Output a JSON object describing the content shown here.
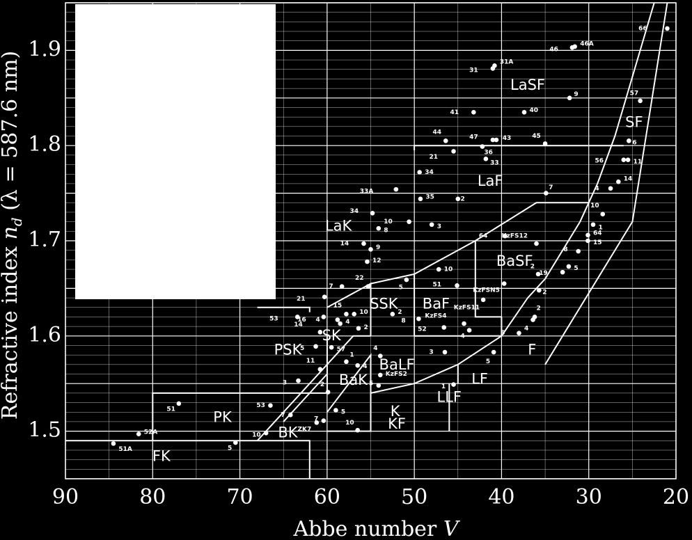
{
  "chart_data": {
    "type": "scatter",
    "xlabel_main": "Abbe number ",
    "xlabel_var": "V",
    "ylabel_main": "Refractive index ",
    "ylabel_var": "n",
    "ylabel_sub": "d",
    "ylabel_paren": "  (λ = 587.6 nm)",
    "xlim": [
      90,
      20
    ],
    "ylim": [
      1.45,
      1.95
    ],
    "x_ticks": [
      90,
      80,
      70,
      60,
      50,
      40,
      30,
      20
    ],
    "x_tick_labels": [
      "90",
      "80",
      "70",
      "60",
      "50",
      "40",
      "30",
      "20"
    ],
    "y_ticks": [
      1.5,
      1.6,
      1.7,
      1.8,
      1.9
    ],
    "y_tick_labels": [
      "1.5",
      "1.6",
      "1.7",
      "1.8",
      "1.9"
    ],
    "grid": true,
    "regions": [
      {
        "label": "FK",
        "x": 79,
        "y": 1.473
      },
      {
        "label": "PK",
        "x": 72,
        "y": 1.514
      },
      {
        "label": "BK",
        "x": 64.5,
        "y": 1.498
      },
      {
        "label": "PSK",
        "x": 64.5,
        "y": 1.585
      },
      {
        "label": "SK",
        "x": 59.5,
        "y": 1.6
      },
      {
        "label": "BaK",
        "x": 57,
        "y": 1.553
      },
      {
        "label": "K",
        "x": 52.2,
        "y": 1.52
      },
      {
        "label": "KF",
        "x": 52,
        "y": 1.507
      },
      {
        "label": "BaLF",
        "x": 52,
        "y": 1.569
      },
      {
        "label": "LLF",
        "x": 46,
        "y": 1.535
      },
      {
        "label": "LF",
        "x": 42.5,
        "y": 1.554
      },
      {
        "label": "F",
        "x": 36.5,
        "y": 1.585
      },
      {
        "label": "BaF",
        "x": 47.5,
        "y": 1.633
      },
      {
        "label": "SSK",
        "x": 53.5,
        "y": 1.633
      },
      {
        "label": "BaSF",
        "x": 38.5,
        "y": 1.678
      },
      {
        "label": "LaK",
        "x": 58.7,
        "y": 1.715
      },
      {
        "label": "LaF",
        "x": 41.3,
        "y": 1.762
      },
      {
        "label": "LaSF",
        "x": 37,
        "y": 1.863
      },
      {
        "label": "SF",
        "x": 24.8,
        "y": 1.824
      }
    ],
    "points": [
      {
        "x": 84.5,
        "y": 1.487,
        "label": "51A",
        "dx": 0.6,
        "dy": -0.006
      },
      {
        "x": 81.6,
        "y": 1.497,
        "label": "52A",
        "dx": 0.6,
        "dy": 0.002
      },
      {
        "x": 77.0,
        "y": 1.529,
        "label": "51",
        "dx": -0.4,
        "dy": -0.006
      },
      {
        "x": 70.5,
        "y": 1.488,
        "label": "5",
        "dx": -0.4,
        "dy": -0.006
      },
      {
        "x": 67.0,
        "y": 1.498,
        "label": "10",
        "dx": -0.6,
        "dy": -0.002
      },
      {
        "x": 66.5,
        "y": 1.527,
        "label": "53",
        "dx": -0.6,
        "dy": 0.0
      },
      {
        "x": 64.2,
        "y": 1.517,
        "label": "7",
        "dx": -0.6,
        "dy": 0.0
      },
      {
        "x": 63.3,
        "y": 1.553,
        "label": "3",
        "dx": -1.3,
        "dy": -0.002
      },
      {
        "x": 63.4,
        "y": 1.62,
        "label": "53",
        "dx": -2.2,
        "dy": -0.002
      },
      {
        "x": 61.3,
        "y": 1.589,
        "label": "5",
        "dx": -1.3,
        "dy": -0.002
      },
      {
        "x": 60.8,
        "y": 1.565,
        "label": "11",
        "dx": -0.6,
        "dy": 0.009
      },
      {
        "x": 60.8,
        "y": 1.604,
        "label": "14",
        "dx": -2.0,
        "dy": 0.008
      },
      {
        "x": 60.4,
        "y": 1.62,
        "label": "16",
        "dx": -2.0,
        "dy": -0.003
      },
      {
        "x": 60.3,
        "y": 1.641,
        "label": "21",
        "dx": -2.2,
        "dy": -0.002
      },
      {
        "x": 59.5,
        "y": 1.588,
        "label": "57",
        "dx": 0.6,
        "dy": -0.002
      },
      {
        "x": 59.0,
        "y": 1.522,
        "label": "5",
        "dx": 0.6,
        "dy": -0.002
      },
      {
        "x": 58.8,
        "y": 1.617,
        "label": "4",
        "dx": -2.0,
        "dy": 0.0
      },
      {
        "x": 58.5,
        "y": 1.613,
        "label": "4",
        "dx": 0.6,
        "dy": 0.002
      },
      {
        "x": 58.3,
        "y": 1.652,
        "label": "7",
        "dx": -1.0,
        "dy": 0.0
      },
      {
        "x": 57.8,
        "y": 1.623,
        "label": "15",
        "dx": -0.5,
        "dy": 0.009
      },
      {
        "x": 56.9,
        "y": 1.623,
        "label": "10",
        "dx": 0.6,
        "dy": 0.002
      },
      {
        "x": 56.4,
        "y": 1.608,
        "label": "2",
        "dx": 0.6,
        "dy": 0.001
      },
      {
        "x": 57.8,
        "y": 1.573,
        "label": "1",
        "dx": 0.4,
        "dy": 0.007
      },
      {
        "x": 56.5,
        "y": 1.569,
        "label": "4",
        "dx": 0.6,
        "dy": -0.001
      },
      {
        "x": 59.9,
        "y": 1.541,
        "label": "2",
        "dx": -0.4,
        "dy": 0.008
      },
      {
        "x": 61.2,
        "y": 1.509,
        "label": "ZK7",
        "dx": -0.6,
        "dy": -0.007
      },
      {
        "x": 60.4,
        "y": 1.511,
        "label": "7",
        "dx": -0.6,
        "dy": 0.002
      },
      {
        "x": 56.5,
        "y": 1.501,
        "label": "10",
        "dx": -0.4,
        "dy": 0.008
      },
      {
        "x": 54.1,
        "y": 1.548,
        "label": "5",
        "dx": -0.6,
        "dy": 0.002
      },
      {
        "x": 53.9,
        "y": 1.559,
        "label": "KzFS2",
        "dx": 0.6,
        "dy": 0.001
      },
      {
        "x": 53.9,
        "y": 1.579,
        "label": "4",
        "dx": -0.3,
        "dy": 0.008
      },
      {
        "x": 55.3,
        "y": 1.652,
        "label": "22",
        "dx": -0.5,
        "dy": 0.009
      },
      {
        "x": 55.4,
        "y": 1.678,
        "label": "12",
        "dx": 0.6,
        "dy": 0.001
      },
      {
        "x": 55.0,
        "y": 1.691,
        "label": "9",
        "dx": 0.6,
        "dy": 0.002
      },
      {
        "x": 55.8,
        "y": 1.697,
        "label": "14",
        "dx": -1.7,
        "dy": 0.0
      },
      {
        "x": 54.8,
        "y": 1.729,
        "label": "34",
        "dx": -1.6,
        "dy": 0.002
      },
      {
        "x": 54.1,
        "y": 1.713,
        "label": "8",
        "dx": 0.6,
        "dy": -0.002
      },
      {
        "x": 52.5,
        "y": 1.623,
        "label": "2",
        "dx": 0.6,
        "dy": 0.002
      },
      {
        "x": 52.1,
        "y": 1.754,
        "label": "33A",
        "dx": -2.6,
        "dy": -0.002
      },
      {
        "x": 50.9,
        "y": 1.659,
        "label": "5",
        "dx": -0.4,
        "dy": -0.008
      },
      {
        "x": 50.6,
        "y": 1.72,
        "label": "10",
        "dx": -1.9,
        "dy": 0.0
      },
      {
        "x": 49.5,
        "y": 1.618,
        "label": "8",
        "dx": -1.5,
        "dy": -0.002
      },
      {
        "x": 49.4,
        "y": 1.772,
        "label": "34",
        "dx": 0.6,
        "dy": 0.0
      },
      {
        "x": 49.3,
        "y": 1.744,
        "label": "35",
        "dx": 0.6,
        "dy": 0.002
      },
      {
        "x": 48.0,
        "y": 1.717,
        "label": "3",
        "dx": 0.6,
        "dy": -0.002
      },
      {
        "x": 47.2,
        "y": 1.67,
        "label": "10",
        "dx": 0.6,
        "dy": 0.0
      },
      {
        "x": 46.5,
        "y": 1.583,
        "label": "3",
        "dx": -1.3,
        "dy": 0.0
      },
      {
        "x": 46.6,
        "y": 1.609,
        "label": "52",
        "dx": -2.0,
        "dy": -0.002
      },
      {
        "x": 46.4,
        "y": 1.805,
        "label": "44",
        "dx": -0.5,
        "dy": 0.009
      },
      {
        "x": 45.5,
        "y": 1.794,
        "label": "21",
        "dx": -1.8,
        "dy": -0.006
      },
      {
        "x": 45.1,
        "y": 1.653,
        "label": "51",
        "dx": -1.8,
        "dy": 0.001
      },
      {
        "x": 45.5,
        "y": 1.549,
        "label": "1",
        "dx": -0.9,
        "dy": -0.002
      },
      {
        "x": 45.0,
        "y": 1.744,
        "label": "2",
        "dx": 0.3,
        "dy": 0.0
      },
      {
        "x": 44.3,
        "y": 1.613,
        "label": "KzFS4",
        "dx": -2.0,
        "dy": 0.008
      },
      {
        "x": 43.7,
        "y": 1.606,
        "label": "4",
        "dx": -0.5,
        "dy": -0.006
      },
      {
        "x": 43.2,
        "y": 1.835,
        "label": "41",
        "dx": -1.7,
        "dy": 0.0
      },
      {
        "x": 42.2,
        "y": 1.799,
        "label": "36",
        "dx": 0.2,
        "dy": -0.006
      },
      {
        "x": 41.8,
        "y": 1.786,
        "label": "33",
        "dx": 0.5,
        "dy": -0.004
      },
      {
        "x": 41.0,
        "y": 1.881,
        "label": "31",
        "dx": -1.7,
        "dy": -0.002
      },
      {
        "x": 40.8,
        "y": 1.884,
        "label": "31A",
        "dx": 0.6,
        "dy": 0.004
      },
      {
        "x": 41.0,
        "y": 1.806,
        "label": "47",
        "dx": -1.7,
        "dy": 0.003
      },
      {
        "x": 40.6,
        "y": 1.806,
        "label": "43",
        "dx": 0.7,
        "dy": 0.002
      },
      {
        "x": 42.1,
        "y": 1.638,
        "label": "KzFS11",
        "dx": -0.4,
        "dy": -0.008
      },
      {
        "x": 40.9,
        "y": 1.583,
        "label": "5",
        "dx": -0.4,
        "dy": -0.01
      },
      {
        "x": 39.6,
        "y": 1.705,
        "label": "64",
        "dx": -2.0,
        "dy": 0.0
      },
      {
        "x": 39.7,
        "y": 1.655,
        "label": "KzFSN5",
        "dx": -0.5,
        "dy": -0.007
      },
      {
        "x": 38.0,
        "y": 1.603,
        "label": "5",
        "dx": -1.6,
        "dy": 0.0
      },
      {
        "x": 36.4,
        "y": 1.617,
        "label": "4",
        "dx": -0.5,
        "dy": -0.009
      },
      {
        "x": 36.2,
        "y": 1.62,
        "label": "2",
        "dx": 0.2,
        "dy": 0.009
      },
      {
        "x": 37.4,
        "y": 1.835,
        "label": "40",
        "dx": 0.6,
        "dy": 0.002
      },
      {
        "x": 36.0,
        "y": 1.697,
        "label": "KzFS12",
        "dx": -1.0,
        "dy": 0.008
      },
      {
        "x": 35.8,
        "y": 1.665,
        "label": "2",
        "dx": -0.4,
        "dy": 0.008
      },
      {
        "x": 35.7,
        "y": 1.648,
        "label": "2",
        "dx": 0.4,
        "dy": -0.002
      },
      {
        "x": 35.0,
        "y": 1.802,
        "label": "45",
        "dx": -0.5,
        "dy": 0.008
      },
      {
        "x": 34.9,
        "y": 1.75,
        "label": "7",
        "dx": 0.3,
        "dy": 0.006
      },
      {
        "x": 33.0,
        "y": 1.667,
        "label": "19",
        "dx": -1.7,
        "dy": -0.001
      },
      {
        "x": 32.3,
        "y": 1.673,
        "label": "5",
        "dx": 0.6,
        "dy": -0.002
      },
      {
        "x": 32.2,
        "y": 1.85,
        "label": "9",
        "dx": 0.5,
        "dy": 0.004
      },
      {
        "x": 31.9,
        "y": 1.903,
        "label": "46",
        "dx": -1.6,
        "dy": -0.002
      },
      {
        "x": 31.6,
        "y": 1.904,
        "label": "46A",
        "dx": 0.6,
        "dy": 0.003
      },
      {
        "x": 31.2,
        "y": 1.689,
        "label": "8",
        "dx": -1.2,
        "dy": 0.002
      },
      {
        "x": 30.1,
        "y": 1.7,
        "label": "15",
        "dx": 0.6,
        "dy": -0.002
      },
      {
        "x": 30.1,
        "y": 1.706,
        "label": "64",
        "dx": 0.6,
        "dy": 0.002
      },
      {
        "x": 29.5,
        "y": 1.717,
        "label": "1",
        "dx": 0.6,
        "dy": -0.003
      },
      {
        "x": 28.4,
        "y": 1.728,
        "label": "10",
        "dx": -0.4,
        "dy": 0.009
      },
      {
        "x": 27.5,
        "y": 1.755,
        "label": "4",
        "dx": -1.3,
        "dy": 0.0
      },
      {
        "x": 26.6,
        "y": 1.762,
        "label": "14",
        "dx": 0.6,
        "dy": 0.003
      },
      {
        "x": 26.0,
        "y": 1.785,
        "label": "56",
        "dx": -2.3,
        "dy": -0.001
      },
      {
        "x": 25.5,
        "y": 1.785,
        "label": "11",
        "dx": 0.6,
        "dy": -0.002
      },
      {
        "x": 25.4,
        "y": 1.805,
        "label": "6",
        "dx": 0.4,
        "dy": -0.002
      },
      {
        "x": 24.1,
        "y": 1.847,
        "label": "57",
        "dx": -0.2,
        "dy": 0.008
      },
      {
        "x": 21.0,
        "y": 1.923,
        "label": "66",
        "dx": -2.3,
        "dy": 0.0
      }
    ]
  }
}
